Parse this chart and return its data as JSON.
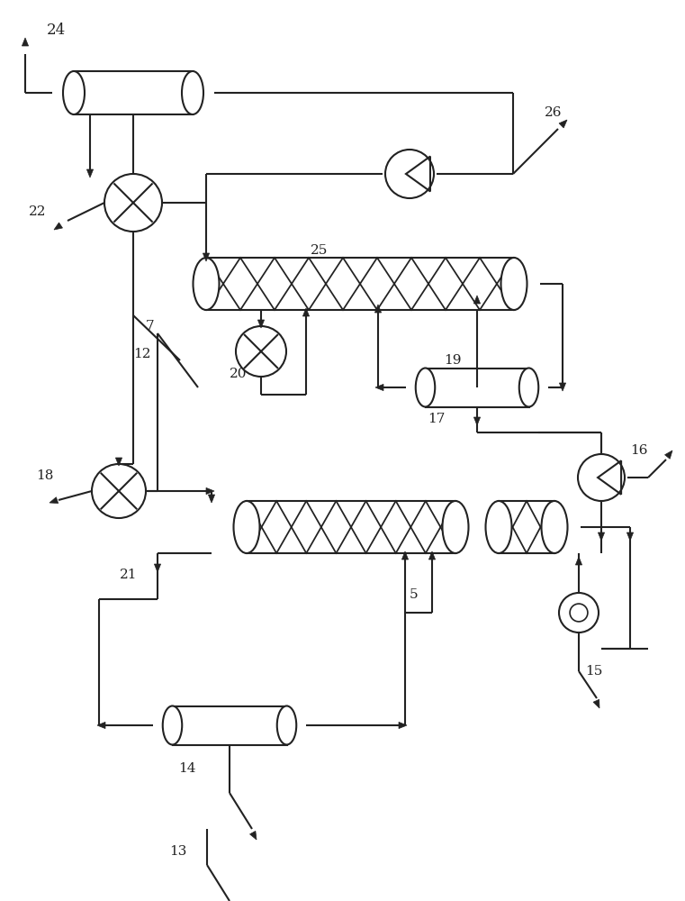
{
  "bg": "#ffffff",
  "lc": "#222222",
  "lw": 1.5,
  "fw": [
    7.61,
    10.0
  ],
  "dpi": 100
}
